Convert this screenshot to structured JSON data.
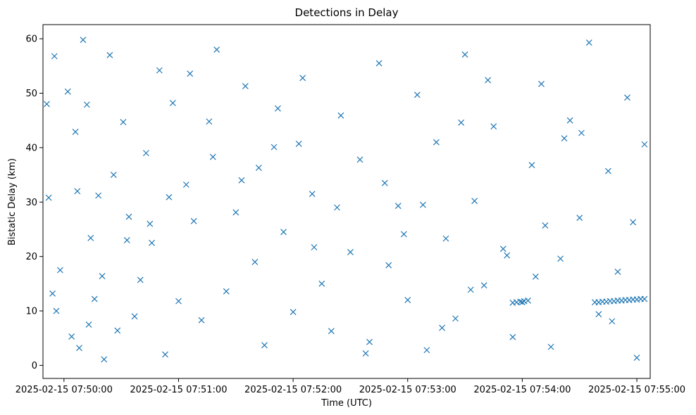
{
  "chart_data": {
    "type": "scatter",
    "title": "Detections in Delay",
    "xlabel": "Time (UTC)",
    "ylabel": "Bistatic Delay (km)",
    "x_range": [
      "2025-02-15 07:49:49",
      "2025-02-15 07:55:07"
    ],
    "ylim": [
      -2.4,
      62.6
    ],
    "x_ticks": [
      "2025-02-15 07:50:00",
      "2025-02-15 07:51:00",
      "2025-02-15 07:52:00",
      "2025-02-15 07:53:00",
      "2025-02-15 07:54:00",
      "2025-02-15 07:55:00"
    ],
    "y_ticks": [
      0,
      10,
      20,
      30,
      40,
      50,
      60
    ],
    "marker": "x",
    "grid": false,
    "color": "#1f77b4",
    "series": [
      {
        "x": [
          "2025-02-15 07:49:51",
          "2025-02-15 07:49:52",
          "2025-02-15 07:49:54",
          "2025-02-15 07:49:55",
          "2025-02-15 07:49:56",
          "2025-02-15 07:49:58",
          "2025-02-15 07:50:02",
          "2025-02-15 07:50:04",
          "2025-02-15 07:50:06",
          "2025-02-15 07:50:08",
          "2025-02-15 07:50:10",
          "2025-02-15 07:50:12",
          "2025-02-15 07:50:14",
          "2025-02-15 07:50:16",
          "2025-02-15 07:50:18",
          "2025-02-15 07:50:20",
          "2025-02-15 07:50:24",
          "2025-02-15 07:50:26",
          "2025-02-15 07:50:28",
          "2025-02-15 07:50:31",
          "2025-02-15 07:50:34",
          "2025-02-15 07:50:37",
          "2025-02-15 07:50:40",
          "2025-02-15 07:50:43",
          "2025-02-15 07:50:46",
          "2025-02-15 07:50:50",
          "2025-02-15 07:50:53",
          "2025-02-15 07:50:57",
          "2025-02-15 07:51:00",
          "2025-02-15 07:51:04",
          "2025-02-15 07:51:08",
          "2025-02-15 07:51:12",
          "2025-02-15 07:51:16",
          "2025-02-15 07:51:20",
          "2025-02-15 07:51:25",
          "2025-02-15 07:51:30",
          "2025-02-15 07:51:35",
          "2025-02-15 07:51:40",
          "2025-02-15 07:51:45",
          "2025-02-15 07:51:50",
          "2025-02-15 07:51:55",
          "2025-02-15 07:52:00",
          "2025-02-15 07:52:05",
          "2025-02-15 07:52:10",
          "2025-02-15 07:52:15",
          "2025-02-15 07:52:20",
          "2025-02-15 07:52:25",
          "2025-02-15 07:52:30",
          "2025-02-15 07:52:35",
          "2025-02-15 07:52:40",
          "2025-02-15 07:52:45",
          "2025-02-15 07:52:50",
          "2025-02-15 07:52:55",
          "2025-02-15 07:53:00",
          "2025-02-15 07:53:05",
          "2025-02-15 07:53:10",
          "2025-02-15 07:53:15",
          "2025-02-15 07:53:20",
          "2025-02-15 07:53:25",
          "2025-02-15 07:53:30",
          "2025-02-15 07:53:35",
          "2025-02-15 07:53:40",
          "2025-02-15 07:53:45",
          "2025-02-15 07:53:50",
          "2025-02-15 07:53:55",
          "2025-02-15 07:54:00",
          "2025-02-15 07:54:05",
          "2025-02-15 07:54:10",
          "2025-02-15 07:54:15",
          "2025-02-15 07:54:20",
          "2025-02-15 07:54:25",
          "2025-02-15 07:54:30",
          "2025-02-15 07:54:35",
          "2025-02-15 07:54:40",
          "2025-02-15 07:54:45",
          "2025-02-15 07:54:50",
          "2025-02-15 07:54:55",
          "2025-02-15 07:55:00",
          "2025-02-15 07:55:04",
          "2025-02-15 07:54:38",
          "2025-02-15 07:54:40",
          "2025-02-15 07:54:42",
          "2025-02-15 07:54:44",
          "2025-02-15 07:54:46",
          "2025-02-15 07:54:48",
          "2025-02-15 07:54:50",
          "2025-02-15 07:54:52",
          "2025-02-15 07:54:54",
          "2025-02-15 07:54:56",
          "2025-02-15 07:54:58",
          "2025-02-15 07:55:00",
          "2025-02-15 07:55:02",
          "2025-02-15 07:55:04",
          "2025-02-15 07:53:55",
          "2025-02-15 07:53:57",
          "2025-02-15 07:53:59",
          "2025-02-15 07:54:01",
          "2025-02-15 07:54:03",
          "2025-02-15 07:50:07",
          "2025-02-15 07:50:13",
          "2025-02-15 07:50:45",
          "2025-02-15 07:51:18",
          "2025-02-15 07:51:52",
          "2025-02-15 07:52:11",
          "2025-02-15 07:52:48",
          "2025-02-15 07:53:18",
          "2025-02-15 07:53:42",
          "2025-02-15 07:54:07",
          "2025-02-15 07:54:31",
          "2025-02-15 07:50:21",
          "2025-02-15 07:50:55",
          "2025-02-15 07:51:33",
          "2025-02-15 07:52:03",
          "2025-02-15 07:52:38",
          "2025-02-15 07:53:08",
          "2025-02-15 07:53:33",
          "2025-02-15 07:54:12",
          "2025-02-15 07:54:47",
          "2025-02-15 07:50:33",
          "2025-02-15 07:51:06",
          "2025-02-15 07:51:42",
          "2025-02-15 07:52:23",
          "2025-02-15 07:52:58",
          "2025-02-15 07:53:28",
          "2025-02-15 07:53:52",
          "2025-02-15 07:54:22",
          "2025-02-15 07:54:58"
        ],
        "y": [
          48.0,
          30.8,
          13.2,
          56.8,
          10.0,
          17.5,
          50.3,
          5.3,
          42.9,
          3.2,
          59.8,
          47.9,
          23.4,
          12.2,
          31.2,
          16.4,
          57.0,
          35.0,
          6.4,
          44.7,
          27.3,
          9.0,
          15.7,
          39.0,
          22.5,
          54.2,
          2.0,
          48.2,
          11.8,
          33.2,
          26.5,
          8.3,
          44.8,
          58.0,
          13.6,
          28.1,
          51.3,
          19.0,
          3.7,
          40.1,
          24.5,
          9.8,
          52.8,
          31.5,
          15.0,
          6.3,
          45.9,
          20.8,
          37.8,
          4.3,
          55.5,
          18.4,
          29.3,
          12.0,
          49.7,
          2.8,
          41.0,
          23.3,
          8.6,
          57.1,
          30.2,
          14.7,
          43.9,
          21.4,
          5.2,
          11.6,
          36.8,
          51.7,
          3.4,
          19.6,
          45.0,
          27.1,
          59.3,
          9.4,
          35.7,
          17.2,
          49.2,
          1.4,
          40.6,
          11.6,
          11.6,
          11.7,
          11.7,
          11.8,
          11.8,
          11.9,
          11.9,
          12.0,
          12.0,
          12.1,
          12.1,
          12.2,
          12.2,
          11.5,
          11.6,
          11.7,
          11.8,
          11.9,
          32.0,
          7.5,
          26.0,
          38.3,
          47.2,
          21.7,
          33.5,
          6.9,
          52.4,
          16.3,
          42.7,
          1.1,
          30.9,
          34.0,
          40.7,
          2.2,
          29.5,
          13.9,
          25.7,
          8.1,
          23.0,
          53.6,
          36.3,
          29.0,
          24.1,
          44.6,
          20.2,
          41.7,
          26.3
        ]
      }
    ]
  }
}
